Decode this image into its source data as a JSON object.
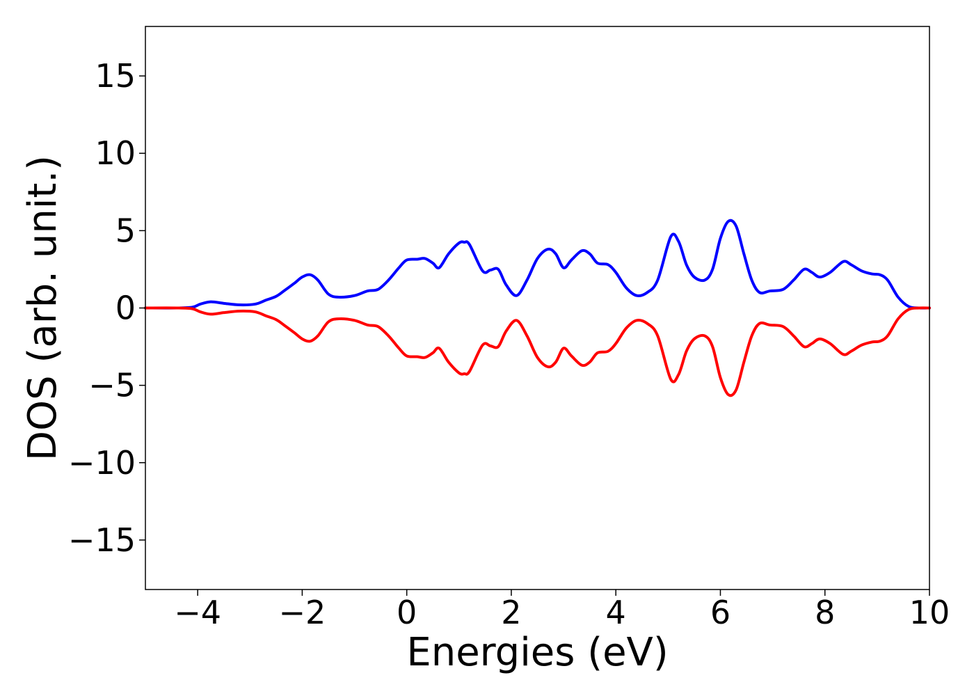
{
  "chart_data": {
    "type": "line",
    "title": "",
    "xlabel": "Energies (eV)",
    "ylabel": "DOS (arb. unit.)",
    "xlim": [
      -5,
      10
    ],
    "ylim": [
      -18.2,
      18.2
    ],
    "x_ticks": [
      -4,
      -2,
      0,
      2,
      4,
      6,
      8,
      10
    ],
    "x_tick_labels": [
      "−4",
      "−2",
      "0",
      "2",
      "4",
      "6",
      "8",
      "10"
    ],
    "y_ticks": [
      -15,
      -10,
      -5,
      0,
      5,
      10,
      15
    ],
    "y_tick_labels": [
      "−15",
      "−10",
      "−5",
      "0",
      "5",
      "10",
      "15"
    ],
    "grid": false,
    "legend": "none",
    "series": [
      {
        "color": "#0000ff",
        "x": [
          -5,
          -4.4,
          -4.1,
          -3.95,
          -3.75,
          -3.5,
          -3.2,
          -2.9,
          -2.7,
          -2.5,
          -2.35,
          -2.15,
          -2.0,
          -1.85,
          -1.7,
          -1.5,
          -1.3,
          -1.0,
          -0.75,
          -0.55,
          -0.35,
          -0.15,
          0.0,
          0.2,
          0.35,
          0.5,
          0.62,
          0.8,
          1.0,
          1.1,
          1.2,
          1.45,
          1.6,
          1.75,
          1.9,
          2.1,
          2.3,
          2.5,
          2.7,
          2.85,
          3.0,
          3.15,
          3.35,
          3.5,
          3.65,
          3.85,
          4.0,
          4.2,
          4.4,
          4.6,
          4.8,
          5.05,
          5.2,
          5.35,
          5.5,
          5.7,
          5.85,
          6.0,
          6.15,
          6.3,
          6.45,
          6.6,
          6.75,
          6.95,
          7.2,
          7.4,
          7.6,
          7.75,
          7.9,
          8.1,
          8.35,
          8.5,
          8.7,
          8.9,
          9.05,
          9.2,
          9.4,
          9.6,
          9.8,
          10.0
        ],
        "y": [
          0,
          0,
          0.05,
          0.25,
          0.4,
          0.3,
          0.2,
          0.25,
          0.5,
          0.75,
          1.1,
          1.6,
          2.0,
          2.15,
          1.8,
          0.9,
          0.7,
          0.8,
          1.1,
          1.2,
          1.8,
          2.6,
          3.1,
          3.15,
          3.2,
          2.9,
          2.6,
          3.5,
          4.2,
          4.25,
          4.1,
          2.4,
          2.45,
          2.5,
          1.5,
          0.8,
          1.8,
          3.2,
          3.8,
          3.5,
          2.6,
          3.1,
          3.7,
          3.5,
          2.9,
          2.8,
          2.3,
          1.3,
          0.8,
          1.0,
          1.8,
          4.6,
          4.3,
          2.8,
          2.0,
          1.8,
          2.5,
          4.5,
          5.6,
          5.3,
          3.5,
          1.8,
          1.0,
          1.1,
          1.2,
          1.8,
          2.5,
          2.3,
          2.0,
          2.3,
          3.0,
          2.8,
          2.4,
          2.2,
          2.15,
          1.8,
          0.7,
          0.1,
          0.0,
          0.0
        ]
      },
      {
        "color": "#ff0000",
        "x": [
          -5,
          -4.4,
          -4.1,
          -3.95,
          -3.75,
          -3.5,
          -3.2,
          -2.9,
          -2.7,
          -2.5,
          -2.35,
          -2.15,
          -2.0,
          -1.85,
          -1.7,
          -1.5,
          -1.3,
          -1.0,
          -0.75,
          -0.55,
          -0.35,
          -0.15,
          0.0,
          0.2,
          0.35,
          0.5,
          0.62,
          0.8,
          1.0,
          1.1,
          1.2,
          1.45,
          1.6,
          1.75,
          1.9,
          2.1,
          2.3,
          2.5,
          2.7,
          2.85,
          3.0,
          3.15,
          3.35,
          3.5,
          3.65,
          3.85,
          4.0,
          4.2,
          4.4,
          4.6,
          4.8,
          5.05,
          5.2,
          5.35,
          5.5,
          5.7,
          5.85,
          6.0,
          6.15,
          6.3,
          6.45,
          6.6,
          6.75,
          6.95,
          7.2,
          7.4,
          7.6,
          7.75,
          7.9,
          8.1,
          8.35,
          8.5,
          8.7,
          8.9,
          9.05,
          9.2,
          9.4,
          9.6,
          9.8,
          10.0
        ],
        "y": [
          0,
          0,
          -0.05,
          -0.25,
          -0.4,
          -0.3,
          -0.2,
          -0.25,
          -0.5,
          -0.75,
          -1.1,
          -1.6,
          -2.0,
          -2.15,
          -1.8,
          -0.9,
          -0.7,
          -0.8,
          -1.1,
          -1.2,
          -1.8,
          -2.6,
          -3.1,
          -3.15,
          -3.2,
          -2.9,
          -2.6,
          -3.5,
          -4.2,
          -4.25,
          -4.1,
          -2.4,
          -2.45,
          -2.5,
          -1.5,
          -0.8,
          -1.8,
          -3.2,
          -3.8,
          -3.5,
          -2.6,
          -3.1,
          -3.7,
          -3.5,
          -2.9,
          -2.8,
          -2.3,
          -1.3,
          -0.8,
          -1.0,
          -1.8,
          -4.6,
          -4.3,
          -2.8,
          -2.0,
          -1.8,
          -2.5,
          -4.5,
          -5.6,
          -5.3,
          -3.5,
          -1.8,
          -1.0,
          -1.1,
          -1.2,
          -1.8,
          -2.5,
          -2.3,
          -2.0,
          -2.3,
          -3.0,
          -2.8,
          -2.4,
          -2.2,
          -2.15,
          -1.8,
          -0.7,
          -0.1,
          -0.0,
          -0.0
        ]
      }
    ]
  }
}
